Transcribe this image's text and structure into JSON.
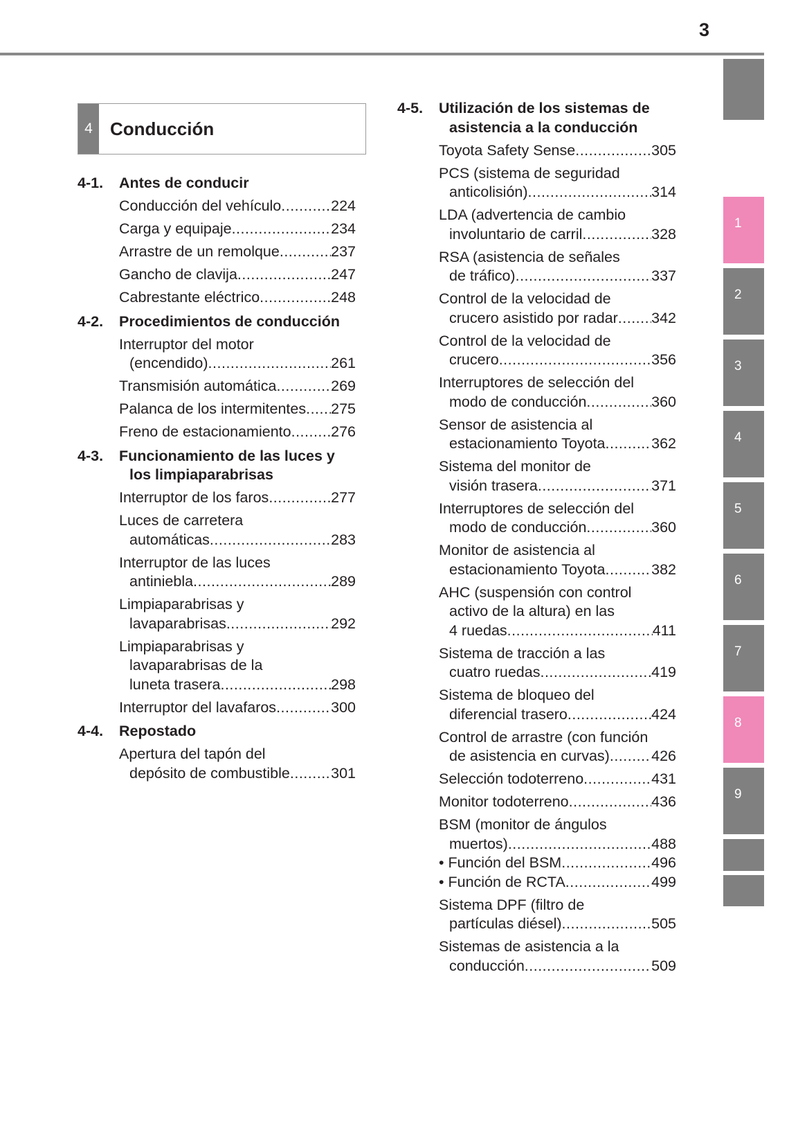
{
  "page_number": "3",
  "chapter": {
    "number": "4",
    "title": "Conducción"
  },
  "colors": {
    "tab_gray": "#808080",
    "tab_active_pink": "#f088b8"
  },
  "tabs": [
    {
      "label": "",
      "active": false
    },
    {
      "label": "1",
      "active": true
    },
    {
      "label": "2",
      "active": false
    },
    {
      "label": "3",
      "active": false
    },
    {
      "label": "4",
      "active": false
    },
    {
      "label": "5",
      "active": false
    },
    {
      "label": "6",
      "active": false
    },
    {
      "label": "7",
      "active": false
    },
    {
      "label": "8",
      "active": true
    },
    {
      "label": "9",
      "active": false
    },
    {
      "label": "",
      "active": false
    },
    {
      "label": "",
      "active": false
    }
  ],
  "left": {
    "sections": [
      {
        "num": "4-1.",
        "title": [
          "Antes de conducir"
        ],
        "entries": [
          {
            "lines": [
              "Conducción del vehículo"
            ],
            "page": "224"
          },
          {
            "lines": [
              "Carga y equipaje"
            ],
            "page": "234"
          },
          {
            "lines": [
              "Arrastre de un remolque "
            ],
            "page": "237"
          },
          {
            "lines": [
              "Gancho de clavija "
            ],
            "page": "247"
          },
          {
            "lines": [
              "Cabrestante eléctrico"
            ],
            "page": "248"
          }
        ]
      },
      {
        "num": "4-2.",
        "title": [
          "Procedimientos de conducción"
        ],
        "entries": [
          {
            "lines": [
              "Interruptor del motor",
              "(encendido)"
            ],
            "page": "261"
          },
          {
            "lines": [
              "Transmisión automática"
            ],
            "page": "269"
          },
          {
            "lines": [
              "Palanca de los intermitentes"
            ],
            "page": "275"
          },
          {
            "lines": [
              "Freno de estacionamiento "
            ],
            "page": "276"
          }
        ]
      },
      {
        "num": "4-3.",
        "title": [
          "Funcionamiento de las luces y",
          "los limpiaparabrisas"
        ],
        "entries": [
          {
            "lines": [
              "Interruptor de los faros"
            ],
            "page": "277"
          },
          {
            "lines": [
              "Luces de carretera",
              "automáticas "
            ],
            "page": "283"
          },
          {
            "lines": [
              "Interruptor de las luces",
              "antiniebla "
            ],
            "page": "289"
          },
          {
            "lines": [
              "Limpiaparabrisas y",
              "lavaparabrisas "
            ],
            "page": "292"
          },
          {
            "lines": [
              "Limpiaparabrisas y",
              "lavaparabrisas de la",
              "luneta trasera"
            ],
            "page": "298"
          },
          {
            "lines": [
              "Interruptor del lavafaros"
            ],
            "page": "300"
          }
        ]
      },
      {
        "num": "4-4.",
        "title": [
          "Repostado"
        ],
        "entries": [
          {
            "lines": [
              "Apertura del tapón del",
              "depósito de combustible"
            ],
            "page": "301"
          }
        ]
      }
    ]
  },
  "right": {
    "sections": [
      {
        "num": "4-5.",
        "title": [
          "Utilización de los sistemas de",
          "asistencia a la conducción"
        ],
        "entries": [
          {
            "lines": [
              "Toyota Safety Sense "
            ],
            "page": "305"
          },
          {
            "lines": [
              "PCS (sistema de seguridad",
              "anticolisión) "
            ],
            "page": "314"
          },
          {
            "lines": [
              "LDA (advertencia de cambio",
              "involuntario de carril "
            ],
            "page": "328"
          },
          {
            "lines": [
              "RSA (asistencia de señales",
              "de tráfico) "
            ],
            "page": "337"
          },
          {
            "lines": [
              "Control de la velocidad de",
              "crucero asistido por radar "
            ],
            "page": "342"
          },
          {
            "lines": [
              "Control de la velocidad de",
              "crucero "
            ],
            "page": "356"
          },
          {
            "lines": [
              "Interruptores de selección del",
              "modo de conducción "
            ],
            "page": "360"
          },
          {
            "lines": [
              "Sensor de asistencia al",
              "estacionamiento Toyota "
            ],
            "page": "362"
          },
          {
            "lines": [
              "Sistema del monitor de",
              "visión trasera"
            ],
            "page": "371"
          },
          {
            "lines": [
              "Interruptores de selección del",
              "modo de conducción "
            ],
            "page": "360"
          },
          {
            "lines": [
              "Monitor de asistencia al",
              "estacionamiento Toyota "
            ],
            "page": "382"
          },
          {
            "lines": [
              "AHC (suspensión con control",
              "activo de la altura) en las",
              "4 ruedas "
            ],
            "page": "411"
          },
          {
            "lines": [
              "Sistema de tracción a las",
              "cuatro ruedas "
            ],
            "page": "419"
          },
          {
            "lines": [
              "Sistema de bloqueo del",
              "diferencial trasero"
            ],
            "page": "424"
          },
          {
            "lines": [
              "Control de arrastre (con función",
              "de asistencia en curvas) "
            ],
            "page": "426"
          },
          {
            "lines": [
              "Selección todoterreno"
            ],
            "page": "431"
          },
          {
            "lines": [
              "Monitor todoterreno "
            ],
            "page": "436"
          },
          {
            "lines": [
              "BSM (monitor de ángulos",
              "muertos)"
            ],
            "page": "488"
          },
          {
            "lines": [
              "• Función del BSM "
            ],
            "page": "496",
            "bullet": true
          },
          {
            "lines": [
              "• Función de RCTA "
            ],
            "page": "499",
            "bullet": true
          },
          {
            "lines": [
              "Sistema DPF (filtro de",
              "partículas diésel)"
            ],
            "page": "505"
          },
          {
            "lines": [
              "Sistemas de asistencia a la",
              "conducción "
            ],
            "page": "509"
          }
        ]
      }
    ]
  }
}
